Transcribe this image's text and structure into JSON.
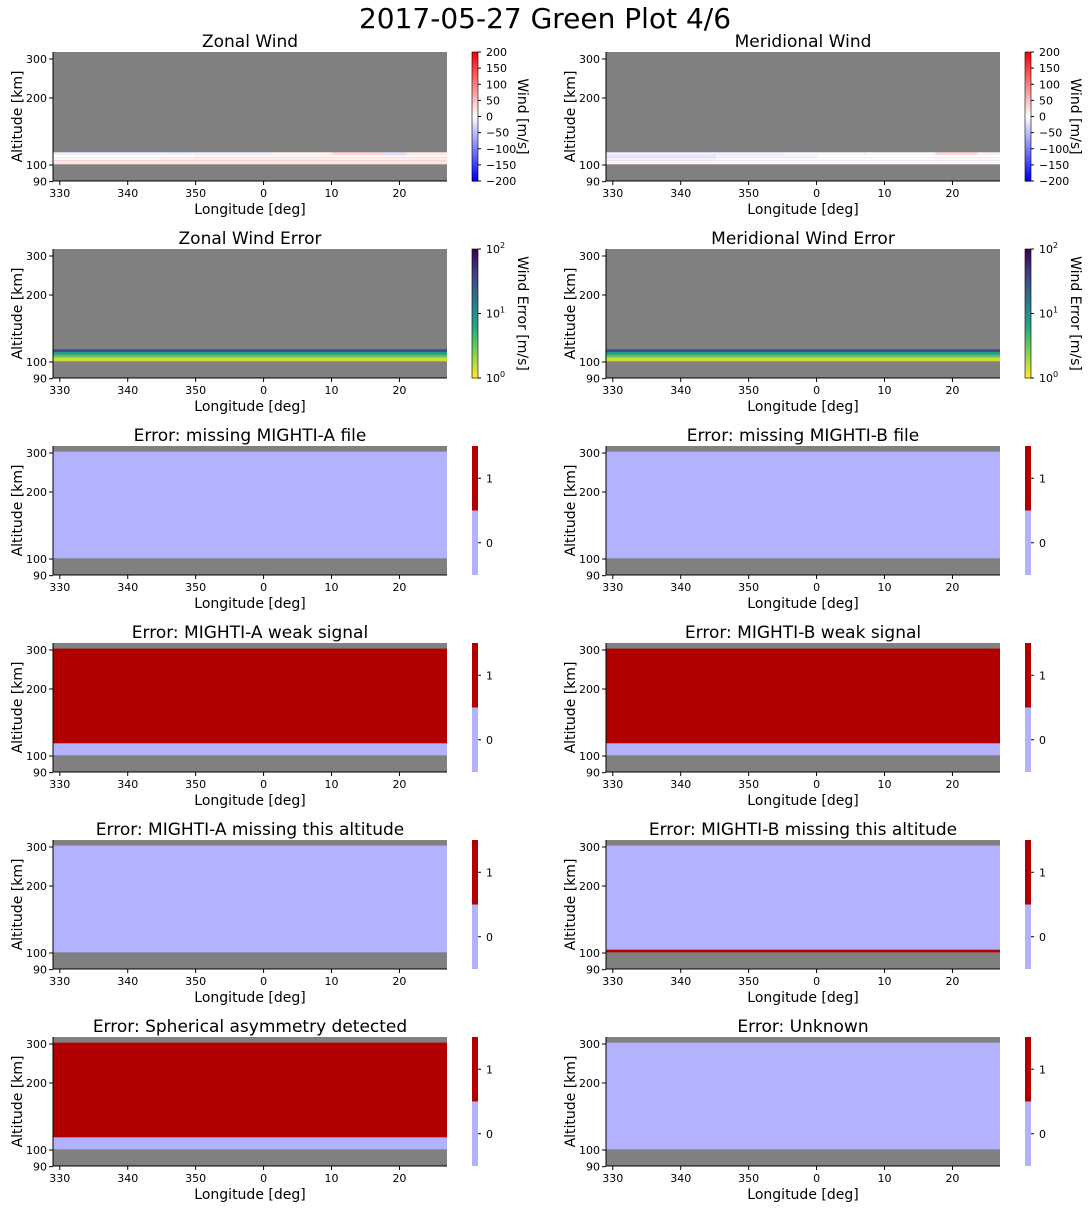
{
  "figure_title": "2017-05-27 Green Plot 4/6",
  "colors": {
    "nodata": "#808080",
    "flag_low": "#b2b2ff",
    "flag_high": "#b20000",
    "wind_neg": "#0000ff",
    "wind_pos": "#ff0000"
  },
  "chart_data": [
    {
      "type": "heatmap",
      "title": "Zonal Wind",
      "xlabel": "Longitude [deg]",
      "ylabel": "Altitude [km]",
      "xticks": [
        "330",
        "340",
        "350",
        "0",
        "10",
        "20"
      ],
      "yticks": [
        "90",
        "100",
        "200",
        "300"
      ],
      "colorbar": {
        "kind": "diverging",
        "label": "Wind [m/s]",
        "range": [
          -200,
          200
        ],
        "ticks": [
          "200",
          "150",
          "100",
          "50",
          "0",
          "−50",
          "−100",
          "−150",
          "−200"
        ]
      },
      "data_extent": {
        "alt": [
          91,
          310
        ],
        "lon": [
          -31,
          27
        ]
      },
      "valid_alt_range": [
        101,
        119
      ],
      "bands": [
        {
          "alt": [
            115,
            119
          ],
          "segments": [
            {
              "lon": [
                -31,
                1
              ],
              "value": -12
            },
            {
              "lon": [
                1,
                10
              ],
              "value": 10
            },
            {
              "lon": [
                10,
                17.5
              ],
              "value": 30
            },
            {
              "lon": [
                17.5,
                21
              ],
              "value": -25
            },
            {
              "lon": [
                21,
                27
              ],
              "value": 15
            }
          ]
        },
        {
          "alt": [
            111,
            115
          ],
          "segments": [
            {
              "lon": [
                -31,
                -10
              ],
              "value": 0
            },
            {
              "lon": [
                -10,
                27
              ],
              "value": 8
            }
          ]
        },
        {
          "alt": [
            107,
            111
          ],
          "segments": [
            {
              "lon": [
                -31,
                -15
              ],
              "value": 8
            },
            {
              "lon": [
                -15,
                27
              ],
              "value": 15
            }
          ]
        },
        {
          "alt": [
            101,
            107
          ],
          "segments": [
            {
              "lon": [
                -31,
                27
              ],
              "value": 22
            }
          ]
        }
      ]
    },
    {
      "type": "heatmap",
      "title": "Meridional Wind",
      "xlabel": "Longitude [deg]",
      "ylabel": "Altitude [km]",
      "xticks": [
        "330",
        "340",
        "350",
        "0",
        "10",
        "20"
      ],
      "yticks": [
        "90",
        "100",
        "200",
        "300"
      ],
      "colorbar": {
        "kind": "diverging",
        "label": "Wind [m/s]",
        "range": [
          -200,
          200
        ],
        "ticks": [
          "200",
          "150",
          "100",
          "50",
          "0",
          "−50",
          "−100",
          "−150",
          "−200"
        ]
      },
      "data_extent": {
        "alt": [
          91,
          310
        ],
        "lon": [
          -31,
          27
        ]
      },
      "valid_alt_range": [
        101,
        119
      ],
      "bands": [
        {
          "alt": [
            115,
            119
          ],
          "segments": [
            {
              "lon": [
                -31,
                -5
              ],
              "value": -12
            },
            {
              "lon": [
                -5,
                7
              ],
              "value": -5
            },
            {
              "lon": [
                7,
                17.5
              ],
              "value": 5
            },
            {
              "lon": [
                17.5,
                23.5
              ],
              "value": 28
            },
            {
              "lon": [
                23.5,
                27
              ],
              "value": 10
            }
          ]
        },
        {
          "alt": [
            111,
            115
          ],
          "segments": [
            {
              "lon": [
                -31,
                -15
              ],
              "value": -20
            },
            {
              "lon": [
                -15,
                0
              ],
              "value": -10
            },
            {
              "lon": [
                0,
                27
              ],
              "value": 0
            }
          ]
        },
        {
          "alt": [
            107,
            111
          ],
          "segments": [
            {
              "lon": [
                -31,
                -15
              ],
              "value": -12
            },
            {
              "lon": [
                -15,
                27
              ],
              "value": 5
            }
          ]
        },
        {
          "alt": [
            101,
            107
          ],
          "segments": [
            {
              "lon": [
                -31,
                27
              ],
              "value": 8
            }
          ]
        }
      ]
    },
    {
      "type": "heatmap",
      "title": "Zonal Wind Error",
      "xlabel": "Longitude [deg]",
      "ylabel": "Altitude [km]",
      "xticks": [
        "330",
        "340",
        "350",
        "0",
        "10",
        "20"
      ],
      "yticks": [
        "90",
        "100",
        "200",
        "300"
      ],
      "colorbar": {
        "kind": "viridis_log",
        "label": "Wind Error [m/s]",
        "range": [
          1,
          100
        ],
        "ticks": [
          {
            "base": "10",
            "exp": "2",
            "value": 100
          },
          {
            "base": "10",
            "exp": "1",
            "value": 10
          },
          {
            "base": "10",
            "exp": "0",
            "value": 1
          }
        ]
      },
      "data_extent": {
        "alt": [
          91,
          310
        ],
        "lon": [
          -31,
          27
        ]
      },
      "valid_alt_range": [
        101,
        119
      ],
      "bands": [
        {
          "alt": [
            115,
            119
          ],
          "segments": [
            {
              "lon": [
                -31,
                27
              ],
              "value": 35
            }
          ]
        },
        {
          "alt": [
            111,
            115
          ],
          "segments": [
            {
              "lon": [
                -31,
                27
              ],
              "value": 8
            }
          ]
        },
        {
          "alt": [
            107,
            111
          ],
          "segments": [
            {
              "lon": [
                -31,
                27
              ],
              "value": 3.5
            }
          ]
        },
        {
          "alt": [
            101,
            107
          ],
          "segments": [
            {
              "lon": [
                -31,
                27
              ],
              "value": 1.4
            }
          ]
        }
      ]
    },
    {
      "type": "heatmap",
      "title": "Meridional Wind Error",
      "xlabel": "Longitude [deg]",
      "ylabel": "Altitude [km]",
      "xticks": [
        "330",
        "340",
        "350",
        "0",
        "10",
        "20"
      ],
      "yticks": [
        "90",
        "100",
        "200",
        "300"
      ],
      "colorbar": {
        "kind": "viridis_log",
        "label": "Wind Error [m/s]",
        "range": [
          1,
          100
        ],
        "ticks": [
          {
            "base": "10",
            "exp": "2",
            "value": 100
          },
          {
            "base": "10",
            "exp": "1",
            "value": 10
          },
          {
            "base": "10",
            "exp": "0",
            "value": 1
          }
        ]
      },
      "data_extent": {
        "alt": [
          91,
          310
        ],
        "lon": [
          -31,
          27
        ]
      },
      "valid_alt_range": [
        101,
        119
      ],
      "bands": [
        {
          "alt": [
            115,
            119
          ],
          "segments": [
            {
              "lon": [
                -31,
                27
              ],
              "value": 35
            }
          ]
        },
        {
          "alt": [
            111,
            115
          ],
          "segments": [
            {
              "lon": [
                -31,
                27
              ],
              "value": 8
            }
          ]
        },
        {
          "alt": [
            107,
            111
          ],
          "segments": [
            {
              "lon": [
                -31,
                27
              ],
              "value": 3.5
            }
          ]
        },
        {
          "alt": [
            101,
            107
          ],
          "segments": [
            {
              "lon": [
                -31,
                27
              ],
              "value": 1.4
            }
          ]
        }
      ]
    },
    {
      "type": "heatmap",
      "title": "Error: missing MIGHTI-A file",
      "xlabel": "Longitude [deg]",
      "ylabel": "Altitude [km]",
      "xticks": [
        "330",
        "340",
        "350",
        "0",
        "10",
        "20"
      ],
      "yticks": [
        "90",
        "100",
        "200",
        "300"
      ],
      "colorbar": {
        "kind": "flag",
        "label": "",
        "ticks": [
          "1",
          "0"
        ]
      },
      "data_extent": {
        "alt": [
          91,
          310
        ],
        "lon": [
          -31,
          27
        ]
      },
      "valid_alt_range": [
        101,
        302
      ],
      "bands": [
        {
          "alt": [
            101,
            302
          ],
          "segments": [
            {
              "lon": [
                -31,
                27
              ],
              "value": 0
            }
          ]
        }
      ]
    },
    {
      "type": "heatmap",
      "title": "Error: missing MIGHTI-B file",
      "xlabel": "Longitude [deg]",
      "ylabel": "Altitude [km]",
      "xticks": [
        "330",
        "340",
        "350",
        "0",
        "10",
        "20"
      ],
      "yticks": [
        "90",
        "100",
        "200",
        "300"
      ],
      "colorbar": {
        "kind": "flag",
        "label": "",
        "ticks": [
          "1",
          "0"
        ]
      },
      "data_extent": {
        "alt": [
          91,
          310
        ],
        "lon": [
          -31,
          27
        ]
      },
      "valid_alt_range": [
        101,
        302
      ],
      "bands": [
        {
          "alt": [
            101,
            302
          ],
          "segments": [
            {
              "lon": [
                -31,
                27
              ],
              "value": 0
            }
          ]
        }
      ]
    },
    {
      "type": "heatmap",
      "title": "Error: MIGHTI-A weak signal",
      "xlabel": "Longitude [deg]",
      "ylabel": "Altitude [km]",
      "xticks": [
        "330",
        "340",
        "350",
        "0",
        "10",
        "20"
      ],
      "yticks": [
        "90",
        "100",
        "200",
        "300"
      ],
      "colorbar": {
        "kind": "flag",
        "label": "",
        "ticks": [
          "1",
          "0"
        ]
      },
      "data_extent": {
        "alt": [
          91,
          310
        ],
        "lon": [
          -31,
          27
        ]
      },
      "valid_alt_range": [
        101,
        302
      ],
      "bands": [
        {
          "alt": [
            101,
            119
          ],
          "segments": [
            {
              "lon": [
                -31,
                27
              ],
              "value": 0
            }
          ]
        },
        {
          "alt": [
            119,
            302
          ],
          "segments": [
            {
              "lon": [
                -31,
                27
              ],
              "value": 1
            }
          ]
        }
      ]
    },
    {
      "type": "heatmap",
      "title": "Error: MIGHTI-B weak signal",
      "xlabel": "Longitude [deg]",
      "ylabel": "Altitude [km]",
      "xticks": [
        "330",
        "340",
        "350",
        "0",
        "10",
        "20"
      ],
      "yticks": [
        "90",
        "100",
        "200",
        "300"
      ],
      "colorbar": {
        "kind": "flag",
        "label": "",
        "ticks": [
          "1",
          "0"
        ]
      },
      "data_extent": {
        "alt": [
          91,
          310
        ],
        "lon": [
          -31,
          27
        ]
      },
      "valid_alt_range": [
        101,
        302
      ],
      "bands": [
        {
          "alt": [
            101,
            119
          ],
          "segments": [
            {
              "lon": [
                -31,
                27
              ],
              "value": 0
            }
          ]
        },
        {
          "alt": [
            119,
            302
          ],
          "segments": [
            {
              "lon": [
                -31,
                27
              ],
              "value": 1
            }
          ]
        }
      ]
    },
    {
      "type": "heatmap",
      "title": "Error: MIGHTI-A missing this altitude",
      "xlabel": "Longitude [deg]",
      "ylabel": "Altitude [km]",
      "xticks": [
        "330",
        "340",
        "350",
        "0",
        "10",
        "20"
      ],
      "yticks": [
        "90",
        "100",
        "200",
        "300"
      ],
      "colorbar": {
        "kind": "flag",
        "label": "",
        "ticks": [
          "1",
          "0"
        ]
      },
      "data_extent": {
        "alt": [
          91,
          310
        ],
        "lon": [
          -31,
          27
        ]
      },
      "valid_alt_range": [
        101,
        302
      ],
      "bands": [
        {
          "alt": [
            101,
            302
          ],
          "segments": [
            {
              "lon": [
                -31,
                27
              ],
              "value": 0
            }
          ]
        }
      ]
    },
    {
      "type": "heatmap",
      "title": "Error: MIGHTI-B missing this altitude",
      "xlabel": "Longitude [deg]",
      "ylabel": "Altitude [km]",
      "xticks": [
        "330",
        "340",
        "350",
        "0",
        "10",
        "20"
      ],
      "yticks": [
        "90",
        "100",
        "200",
        "300"
      ],
      "colorbar": {
        "kind": "flag",
        "label": "",
        "ticks": [
          "1",
          "0"
        ]
      },
      "data_extent": {
        "alt": [
          91,
          310
        ],
        "lon": [
          -31,
          27
        ]
      },
      "valid_alt_range": [
        101,
        302
      ],
      "bands": [
        {
          "alt": [
            101,
            105
          ],
          "segments": [
            {
              "lon": [
                -31,
                27
              ],
              "value": 1
            }
          ]
        },
        {
          "alt": [
            105,
            302
          ],
          "segments": [
            {
              "lon": [
                -31,
                27
              ],
              "value": 0
            }
          ]
        }
      ]
    },
    {
      "type": "heatmap",
      "title": "Error: Spherical asymmetry detected",
      "xlabel": "Longitude [deg]",
      "ylabel": "Altitude [km]",
      "xticks": [
        "330",
        "340",
        "350",
        "0",
        "10",
        "20"
      ],
      "yticks": [
        "90",
        "100",
        "200",
        "300"
      ],
      "colorbar": {
        "kind": "flag",
        "label": "",
        "ticks": [
          "1",
          "0"
        ]
      },
      "data_extent": {
        "alt": [
          91,
          310
        ],
        "lon": [
          -31,
          27
        ]
      },
      "valid_alt_range": [
        101,
        302
      ],
      "bands": [
        {
          "alt": [
            101,
            119
          ],
          "segments": [
            {
              "lon": [
                -31,
                27
              ],
              "value": 0
            }
          ]
        },
        {
          "alt": [
            119,
            302
          ],
          "segments": [
            {
              "lon": [
                -31,
                27
              ],
              "value": 1
            }
          ]
        }
      ]
    },
    {
      "type": "heatmap",
      "title": "Error: Unknown",
      "xlabel": "Longitude [deg]",
      "ylabel": "Altitude [km]",
      "xticks": [
        "330",
        "340",
        "350",
        "0",
        "10",
        "20"
      ],
      "yticks": [
        "90",
        "100",
        "200",
        "300"
      ],
      "colorbar": {
        "kind": "flag",
        "label": "",
        "ticks": [
          "1",
          "0"
        ]
      },
      "data_extent": {
        "alt": [
          91,
          310
        ],
        "lon": [
          -31,
          27
        ]
      },
      "valid_alt_range": [
        101,
        302
      ],
      "bands": [
        {
          "alt": [
            101,
            302
          ],
          "segments": [
            {
              "lon": [
                -31,
                27
              ],
              "value": 0
            }
          ]
        }
      ]
    }
  ]
}
